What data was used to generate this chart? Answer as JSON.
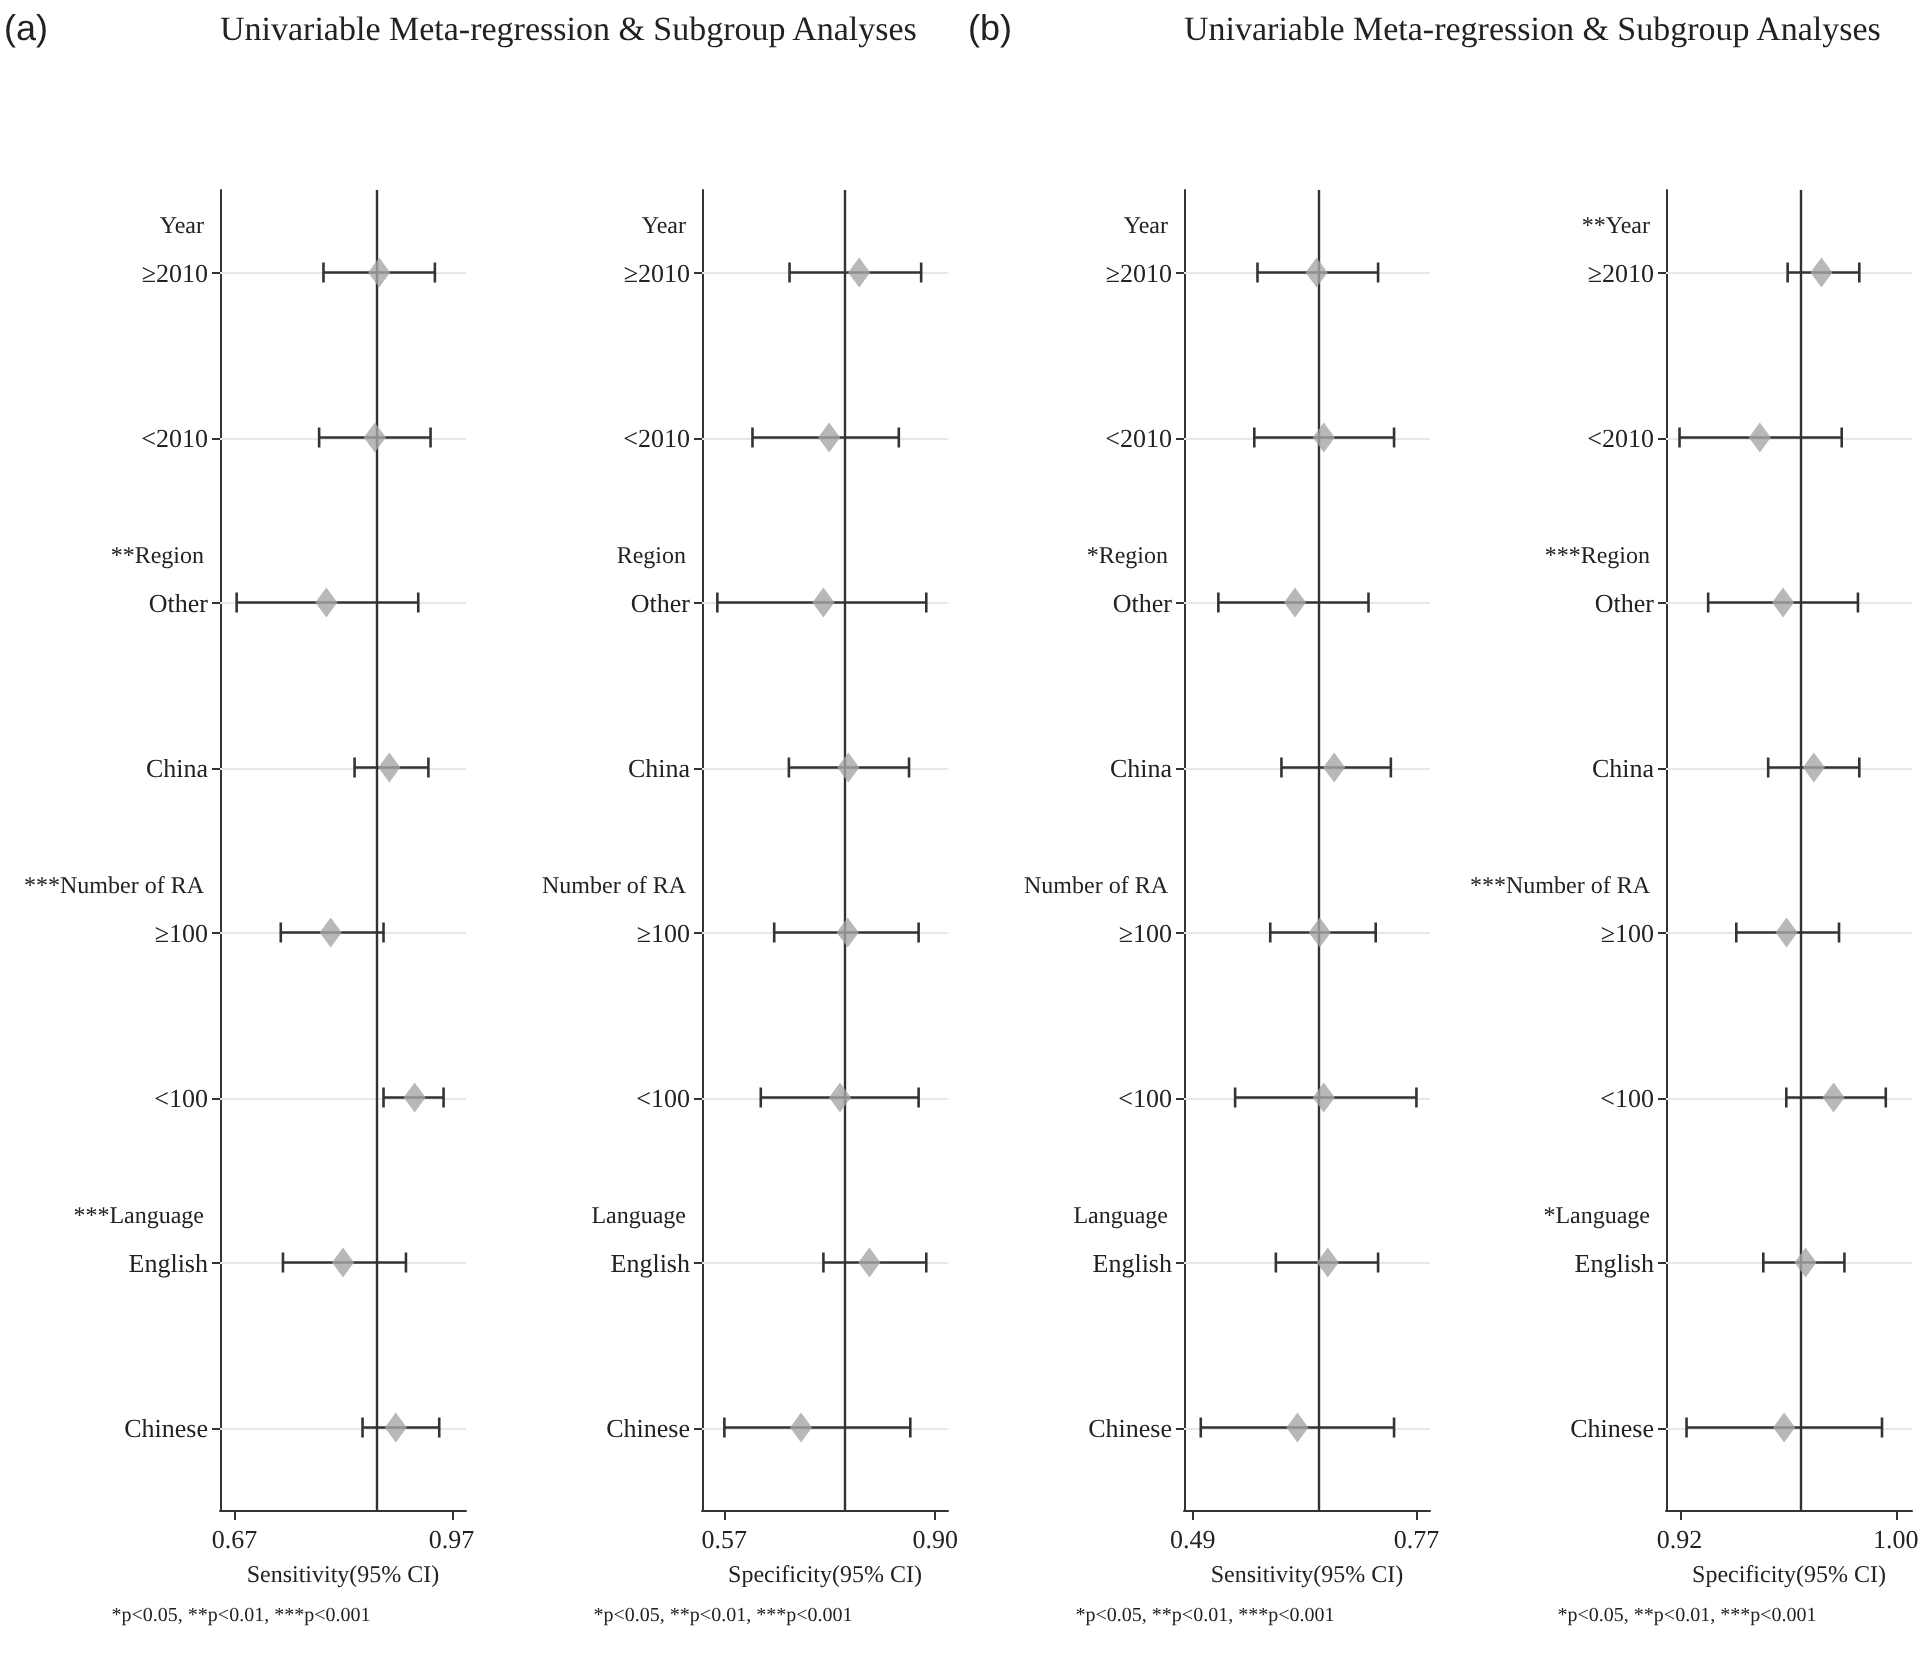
{
  "chart_data": [
    {
      "type": "scatter",
      "orientation": "horizontal",
      "title": "Univariable Meta-regression & Subgroup Analyses",
      "subtitle": "(a)",
      "xlabel": "Sensitivity(95% CI)",
      "categories": [
        "≥2010",
        "<2010",
        "Other",
        "China",
        "≥100",
        "<100",
        "English",
        "Chinese"
      ],
      "series": [
        {
          "color": "#a6a6a6",
          "values": [
            0.87,
            0.864,
            0.797,
            0.884,
            0.803,
            0.919,
            0.82,
            0.893
          ],
          "errors": [
            [
              0.793,
              0.947
            ],
            [
              0.787,
              0.941
            ],
            [
              0.673,
              0.924
            ],
            [
              0.836,
              0.938
            ],
            [
              0.734,
              0.876
            ],
            [
              0.876,
              0.959
            ],
            [
              0.737,
              0.907
            ],
            [
              0.847,
              0.953
            ]
          ]
        }
      ],
      "xlim": [
        0.65,
        0.99
      ],
      "xticks": [
        0.67,
        0.97
      ],
      "ref_lines": [
        {
          "axis": "x",
          "value": 0.867
        }
      ],
      "grid": "y",
      "marker": "diamond",
      "annotations": [
        "Year",
        "**Region",
        "***Number of RA",
        "***Language",
        "*p<0.05, **p<0.01, ***p<0.001"
      ]
    },
    {
      "type": "scatter",
      "orientation": "horizontal",
      "xlabel": "Specificity(95% CI)",
      "categories": [
        "≥2010",
        "<2010",
        "Other",
        "China",
        "≥100",
        "<100",
        "English",
        "Chinese"
      ],
      "series": [
        {
          "color": "#a6a6a6",
          "values": [
            0.781,
            0.734,
            0.725,
            0.764,
            0.763,
            0.751,
            0.797,
            0.69
          ],
          "errors": [
            [
              0.672,
              0.878
            ],
            [
              0.614,
              0.843
            ],
            [
              0.559,
              0.886
            ],
            [
              0.671,
              0.859
            ],
            [
              0.648,
              0.874
            ],
            [
              0.627,
              0.874
            ],
            [
              0.725,
              0.886
            ],
            [
              0.57,
              0.861
            ]
          ]
        }
      ],
      "xlim": [
        0.535,
        0.92
      ],
      "xticks": [
        0.57,
        {
          "value": 0.9,
          "label": "0.90"
        }
      ],
      "ref_lines": [
        {
          "axis": "x",
          "value": 0.758
        }
      ],
      "grid": "y",
      "marker": "diamond",
      "annotations": [
        "Year",
        "Region",
        "Number of RA",
        "Language",
        "*p<0.05, **p<0.01, ***p<0.001"
      ]
    },
    {
      "type": "scatter",
      "orientation": "horizontal",
      "title": "Univariable Meta-regression & Subgroup Analyses",
      "subtitle": "(b)",
      "xlabel": "Sensitivity(95% CI)",
      "categories": [
        "≥2010",
        "<2010",
        "Other",
        "China",
        "≥100",
        "<100",
        "English",
        "Chinese"
      ],
      "series": [
        {
          "color": "#a6a6a6",
          "values": [
            0.645,
            0.654,
            0.618,
            0.667,
            0.649,
            0.654,
            0.659,
            0.621
          ],
          "errors": [
            [
              0.571,
              0.722
            ],
            [
              0.567,
              0.742
            ],
            [
              0.522,
              0.71
            ],
            [
              0.601,
              0.738
            ],
            [
              0.587,
              0.719
            ],
            [
              0.543,
              0.77
            ],
            [
              0.594,
              0.722
            ],
            [
              0.5,
              0.742
            ]
          ]
        }
      ],
      "xlim": [
        0.479,
        0.787
      ],
      "xticks": [
        0.49,
        0.77
      ],
      "ref_lines": [
        {
          "axis": "x",
          "value": 0.647
        }
      ],
      "grid": "y",
      "marker": "diamond",
      "annotations": [
        "Year",
        "*Region",
        "Number of RA",
        "Language",
        "*p<0.05, **p<0.01, ***p<0.001"
      ]
    },
    {
      "type": "scatter",
      "orientation": "horizontal",
      "xlabel": "Specificity(95% CI)",
      "categories": [
        "≥2010",
        "<2010",
        "Other",
        "China",
        "≥100",
        "<100",
        "English",
        "Chinese"
      ],
      "series": [
        {
          "color": "#a6a6a6",
          "values": [
            0.9725,
            0.9497,
            0.9583,
            0.9697,
            0.9596,
            0.977,
            0.9666,
            0.9587
          ],
          "errors": [
            [
              0.96,
              0.9865
            ],
            [
              0.92,
              0.98
            ],
            [
              0.9306,
              0.986
            ],
            [
              0.9528,
              0.9865
            ],
            [
              0.941,
              0.979
            ],
            [
              0.9595,
              0.9963
            ],
            [
              0.951,
              0.981
            ],
            [
              0.9226,
              0.9949
            ]
          ]
        }
      ],
      "xlim": [
        0.915,
        1.006
      ],
      "xticks": [
        0.92,
        {
          "value": 1,
          "label": "1.00"
        }
      ],
      "ref_lines": [
        {
          "axis": "x",
          "value": 0.965
        }
      ],
      "grid": "y",
      "marker": "diamond",
      "annotations": [
        "**Year",
        "***Region",
        "***Number of RA",
        "*Language",
        "*p<0.05, **p<0.01, ***p<0.001"
      ]
    }
  ]
}
